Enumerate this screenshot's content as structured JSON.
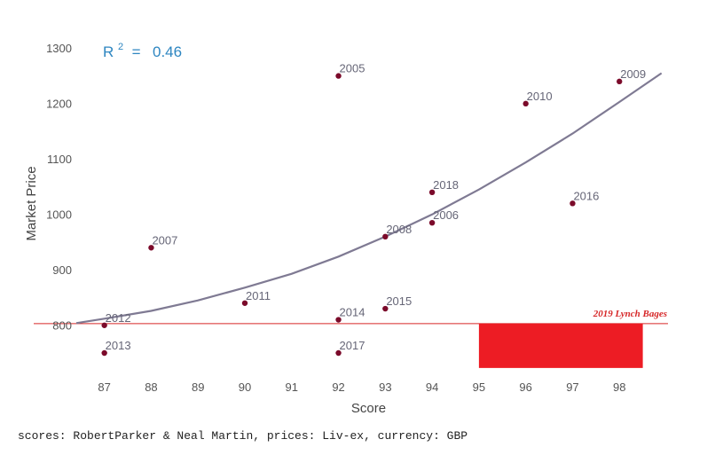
{
  "chart_data": {
    "type": "scatter",
    "xlabel": "Score",
    "ylabel": "Market Price",
    "xlim": [
      86.4,
      99.0
    ],
    "ylim": [
      718,
      1315
    ],
    "x_ticks": [
      "87",
      "88",
      "89",
      "90",
      "91",
      "92",
      "93",
      "94",
      "95",
      "96",
      "97",
      "98"
    ],
    "y_ticks": [
      "800",
      "900",
      "1000",
      "1100",
      "1200",
      "1300"
    ],
    "points": [
      {
        "label": "2005",
        "x": 92,
        "y": 1250
      },
      {
        "label": "2009",
        "x": 98,
        "y": 1240
      },
      {
        "label": "2010",
        "x": 96,
        "y": 1200
      },
      {
        "label": "2018",
        "x": 94,
        "y": 1040
      },
      {
        "label": "2016",
        "x": 97,
        "y": 1020
      },
      {
        "label": "2006",
        "x": 94,
        "y": 985
      },
      {
        "label": "2008",
        "x": 93,
        "y": 960
      },
      {
        "label": "2007",
        "x": 88,
        "y": 940
      },
      {
        "label": "2011",
        "x": 90,
        "y": 840
      },
      {
        "label": "2015",
        "x": 93,
        "y": 830
      },
      {
        "label": "2014",
        "x": 92,
        "y": 810
      },
      {
        "label": "2012",
        "x": 87,
        "y": 800
      },
      {
        "label": "2013",
        "x": 87,
        "y": 750
      },
      {
        "label": "2017",
        "x": 92,
        "y": 750
      }
    ],
    "trendline": {
      "type": "quadratic",
      "x_range": [
        86.4,
        98.9
      ],
      "samples": [
        {
          "x": 86.4,
          "y": 804
        },
        {
          "x": 87,
          "y": 812
        },
        {
          "x": 88,
          "y": 826
        },
        {
          "x": 89,
          "y": 845
        },
        {
          "x": 90,
          "y": 868
        },
        {
          "x": 91,
          "y": 893
        },
        {
          "x": 92,
          "y": 924
        },
        {
          "x": 93,
          "y": 960
        },
        {
          "x": 94,
          "y": 1000
        },
        {
          "x": 95,
          "y": 1045
        },
        {
          "x": 96,
          "y": 1094
        },
        {
          "x": 97,
          "y": 1146
        },
        {
          "x": 98,
          "y": 1203
        },
        {
          "x": 98.9,
          "y": 1255
        }
      ]
    },
    "r_squared": {
      "label": "R",
      "exponent": "2",
      "separator": " = ",
      "value": "0.46"
    },
    "annotation": {
      "text": "2019 Lynch Bages",
      "price": 803,
      "score_low": 95,
      "score_high": 98.5,
      "price_low": 723
    },
    "colors": {
      "points": "#7B0A2A",
      "trendline": "#7F7A93",
      "annotation": "#D62728",
      "annotation_fill": "#ED1C24",
      "r2": "#2E86C1"
    },
    "legend": "none",
    "grid": false
  },
  "footer": "scores: RobertParker & Neal Martin, prices: Liv-ex, currency: GBP"
}
